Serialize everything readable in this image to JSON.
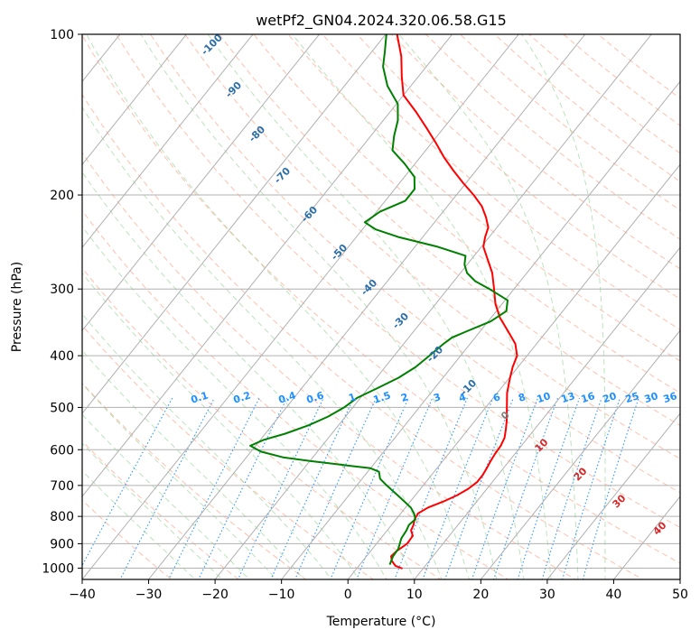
{
  "chart_data": {
    "type": "line",
    "title": "wetPf2_GN04.2024.320.06.58.G15",
    "xlabel": "Temperature (°C)",
    "ylabel": "Pressure (hPa)",
    "xlim": [
      -40,
      50
    ],
    "ylim": [
      1050,
      100
    ],
    "yscale": "log",
    "skew": "skew-T log-P diagram",
    "x_ticks": [
      -40,
      -30,
      -20,
      -10,
      0,
      10,
      20,
      30,
      40,
      50
    ],
    "y_ticks": [
      100,
      200,
      300,
      400,
      500,
      600,
      700,
      800,
      900,
      1000
    ],
    "grid": true,
    "series": [
      {
        "color": "#ff0000",
        "role": "temperature",
        "points": [
          [
            1002,
            6.9
          ],
          [
            990,
            5.5
          ],
          [
            970,
            4.4
          ],
          [
            950,
            3.7
          ],
          [
            930,
            3.9
          ],
          [
            900,
            4.6
          ],
          [
            870,
            4.5
          ],
          [
            850,
            3.6
          ],
          [
            830,
            3.3
          ],
          [
            810,
            2.8
          ],
          [
            790,
            2.6
          ],
          [
            770,
            3.4
          ],
          [
            750,
            5.0
          ],
          [
            730,
            6.3
          ],
          [
            710,
            7.2
          ],
          [
            690,
            7.7
          ],
          [
            670,
            7.7
          ],
          [
            650,
            7.5
          ],
          [
            630,
            7.2
          ],
          [
            610,
            7.0
          ],
          [
            590,
            6.9
          ],
          [
            570,
            6.5
          ],
          [
            550,
            5.7
          ],
          [
            530,
            4.8
          ],
          [
            500,
            3.2
          ],
          [
            470,
            1.5
          ],
          [
            440,
            0.1
          ],
          [
            420,
            -0.8
          ],
          [
            400,
            -1.5
          ],
          [
            380,
            -3.2
          ],
          [
            360,
            -5.8
          ],
          [
            340,
            -8.6
          ],
          [
            320,
            -11.0
          ],
          [
            300,
            -13.0
          ],
          [
            280,
            -15.2
          ],
          [
            265,
            -17.4
          ],
          [
            250,
            -19.7
          ],
          [
            240,
            -20.6
          ],
          [
            230,
            -21.3
          ],
          [
            220,
            -22.9
          ],
          [
            210,
            -24.8
          ],
          [
            200,
            -27.4
          ],
          [
            190,
            -30.4
          ],
          [
            180,
            -33.4
          ],
          [
            170,
            -36.4
          ],
          [
            160,
            -39.3
          ],
          [
            150,
            -42.5
          ],
          [
            140,
            -46.0
          ],
          [
            130,
            -50.0
          ],
          [
            120,
            -52.5
          ],
          [
            110,
            -55.0
          ],
          [
            100,
            -58.3
          ]
        ]
      },
      {
        "color": "#008000",
        "role": "dewpoint",
        "points": [
          [
            985,
            4.5
          ],
          [
            950,
            4.0
          ],
          [
            920,
            3.9
          ],
          [
            900,
            3.5
          ],
          [
            880,
            3.1
          ],
          [
            850,
            2.9
          ],
          [
            830,
            2.6
          ],
          [
            810,
            2.9
          ],
          [
            790,
            2.0
          ],
          [
            770,
            0.8
          ],
          [
            750,
            -0.9
          ],
          [
            730,
            -2.7
          ],
          [
            700,
            -5.5
          ],
          [
            680,
            -7.3
          ],
          [
            660,
            -8.3
          ],
          [
            650,
            -10.0
          ],
          [
            640,
            -15.0
          ],
          [
            630,
            -20.0
          ],
          [
            620,
            -24.5
          ],
          [
            605,
            -28.5
          ],
          [
            590,
            -30.8
          ],
          [
            575,
            -29.5
          ],
          [
            560,
            -27.0
          ],
          [
            540,
            -24.5
          ],
          [
            520,
            -22.6
          ],
          [
            500,
            -21.3
          ],
          [
            480,
            -20.5
          ],
          [
            460,
            -18.6
          ],
          [
            440,
            -16.7
          ],
          [
            420,
            -15.4
          ],
          [
            400,
            -14.7
          ],
          [
            380,
            -14.0
          ],
          [
            370,
            -13.5
          ],
          [
            360,
            -12.0
          ],
          [
            345,
            -9.6
          ],
          [
            330,
            -8.5
          ],
          [
            315,
            -9.6
          ],
          [
            300,
            -13.7
          ],
          [
            290,
            -16.8
          ],
          [
            280,
            -19.0
          ],
          [
            270,
            -20.4
          ],
          [
            260,
            -21.3
          ],
          [
            250,
            -26.6
          ],
          [
            240,
            -33.5
          ],
          [
            232,
            -38.0
          ],
          [
            225,
            -40.5
          ],
          [
            215,
            -39.5
          ],
          [
            205,
            -37.0
          ],
          [
            195,
            -37.0
          ],
          [
            185,
            -38.5
          ],
          [
            175,
            -41.5
          ],
          [
            165,
            -45.0
          ],
          [
            155,
            -46.5
          ],
          [
            145,
            -47.8
          ],
          [
            135,
            -49.8
          ],
          [
            125,
            -53.5
          ],
          [
            115,
            -56.5
          ],
          [
            108,
            -58.0
          ],
          [
            100,
            -59.9
          ]
        ]
      }
    ],
    "dry_adiabat_labels": [
      "-100",
      "-90",
      "-80",
      "-70",
      "-60",
      "-50",
      "-40",
      "-30",
      "-20",
      "-10",
      "0",
      "10",
      "20",
      "30",
      "40"
    ],
    "mixing_ratio_labels": [
      "0.1",
      "0.2",
      "0.4",
      "0.6",
      "1",
      "1.5",
      "2",
      "3",
      "4",
      "6",
      "8",
      "10",
      "13",
      "16",
      "20",
      "25",
      "30",
      "36"
    ],
    "colors": {
      "temperature": "#ff0000",
      "dewpoint": "#008000",
      "isotherm": "#b0b0b0",
      "isobar": "#b0b0b0",
      "dry_adiabat": "#ff8c69",
      "moist_adiabat": "#90d090",
      "mixing_ratio": "#1e90ff",
      "cold_label": "#2c6fa8",
      "warm_label": "#d62728",
      "zero_label": "#808080",
      "tan_curve": "#d2b48c"
    }
  }
}
